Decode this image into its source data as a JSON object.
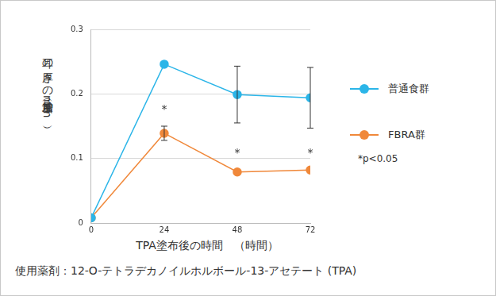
{
  "chart_data": {
    "type": "line",
    "x_label": "TPA塗布後の時間　（時間）",
    "y_label": "耳の厚さの増加量（mm）",
    "x": [
      0,
      24,
      48,
      72
    ],
    "series": [
      {
        "name": "普通食群",
        "color": "#2bb5e8",
        "marker": "circle",
        "line_style": "solid",
        "values": [
          0.008,
          0.246,
          0.199,
          0.194
        ],
        "errors": [
          null,
          null,
          0.044,
          0.047
        ]
      },
      {
        "name": "FBRA群",
        "color": "#f0883a",
        "marker": "circle",
        "line_style": "solid",
        "values": [
          0.008,
          0.139,
          0.079,
          0.082
        ],
        "errors": [
          null,
          0.011,
          null,
          null
        ]
      }
    ],
    "xlim": [
      0,
      72
    ],
    "xticks": [
      0,
      24,
      48,
      72
    ],
    "ylim": [
      0,
      0.3
    ],
    "yticks": [
      0,
      0.1,
      0.2,
      0.3
    ],
    "grid": "y",
    "legend": "right",
    "annotations": [
      {
        "text": "*",
        "x": 24,
        "y": 0.175
      },
      {
        "text": "*",
        "x": 48,
        "y": 0.108
      },
      {
        "text": "*",
        "x": 72,
        "y": 0.108
      }
    ],
    "notes": [
      "*p<0.05"
    ],
    "footnote": "使用薬剤：12-O-テトラデカノイルホルボール-13-アセテート (TPA)"
  }
}
